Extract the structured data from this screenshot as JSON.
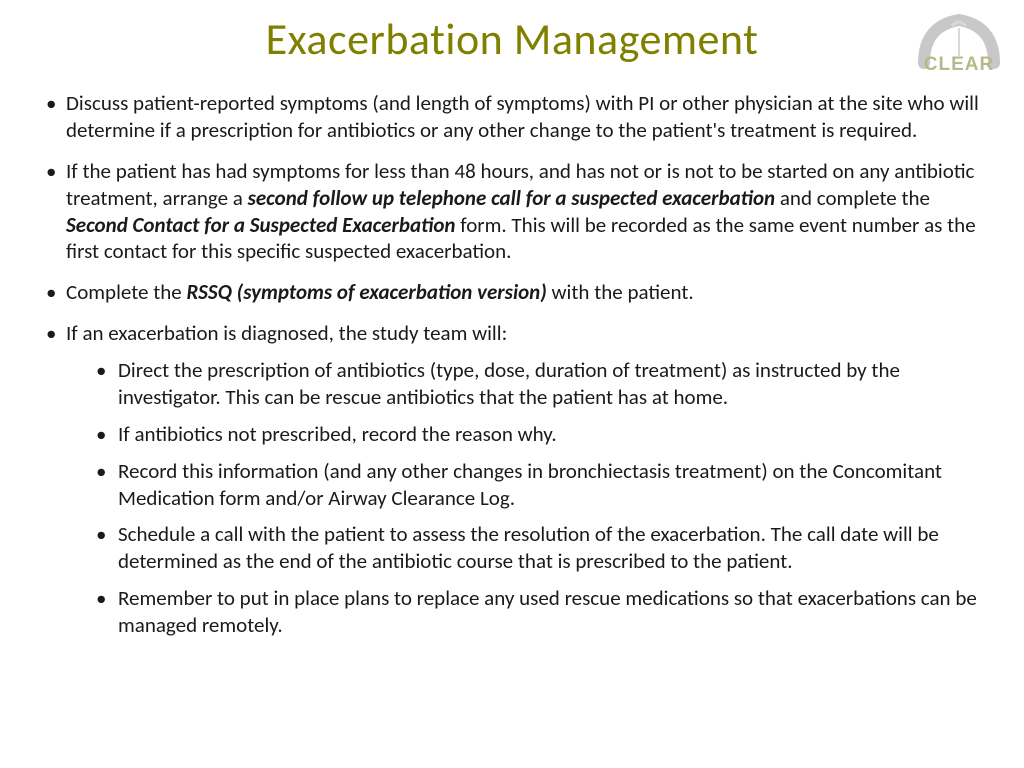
{
  "title": "Exacerbation Management",
  "logo": {
    "text": "CLEAR",
    "arch_color": "#c8c8c8",
    "text_color": "#b8b88a"
  },
  "colors": {
    "title_color": "#808000",
    "body_text": "#1a1a1a",
    "background": "#ffffff"
  },
  "typography": {
    "title_fontsize_pt": 33,
    "body_fontsize_pt": 16,
    "font_family": "Calibri"
  },
  "bullets": [
    {
      "runs": [
        {
          "t": "Discuss patient-reported symptoms (and length of symptoms) with PI or other physician at the site who will determine if a prescription for antibiotics or any other change to the patient's treatment is required.",
          "style": ""
        }
      ]
    },
    {
      "runs": [
        {
          "t": "If the patient has had symptoms for less than 48 hours, and has not or is not to be started on any antibiotic treatment, arrange a ",
          "style": ""
        },
        {
          "t": "second follow up telephone call for a suspected exacerbation",
          "style": "bi"
        },
        {
          "t": " and complete the ",
          "style": ""
        },
        {
          "t": "Second Contact for a Suspected Exacerbation",
          "style": "bi"
        },
        {
          "t": " form. This will be recorded as the same event number as the first contact for this specific suspected exacerbation.",
          "style": ""
        }
      ]
    },
    {
      "runs": [
        {
          "t": " Complete the ",
          "style": ""
        },
        {
          "t": "RSSQ (symptoms of exacerbation version)",
          "style": "bi"
        },
        {
          "t": " with the patient.",
          "style": ""
        }
      ]
    },
    {
      "runs": [
        {
          "t": "If an exacerbation is diagnosed, the study team will:",
          "style": ""
        }
      ],
      "children": [
        {
          "runs": [
            {
              "t": "Direct the prescription of antibiotics (type, dose, duration of treatment) as instructed by the investigator. This can be rescue antibiotics that the patient has at home.",
              "style": ""
            }
          ]
        },
        {
          "runs": [
            {
              "t": "If antibiotics not prescribed, record the reason why.",
              "style": ""
            }
          ]
        },
        {
          "runs": [
            {
              "t": "Record this information (and any other changes in bronchiectasis treatment) on the Concomitant Medication form and/or Airway Clearance Log.",
              "style": ""
            }
          ]
        },
        {
          "runs": [
            {
              "t": "Schedule a call with the patient to assess the resolution of the exacerbation. The call date will be determined as the end of the antibiotic course that is prescribed to the patient.",
              "style": ""
            }
          ]
        },
        {
          "runs": [
            {
              "t": "Remember to put in place plans to replace any used rescue medications so that exacerbations can be managed remotely.",
              "style": ""
            }
          ]
        }
      ]
    }
  ]
}
